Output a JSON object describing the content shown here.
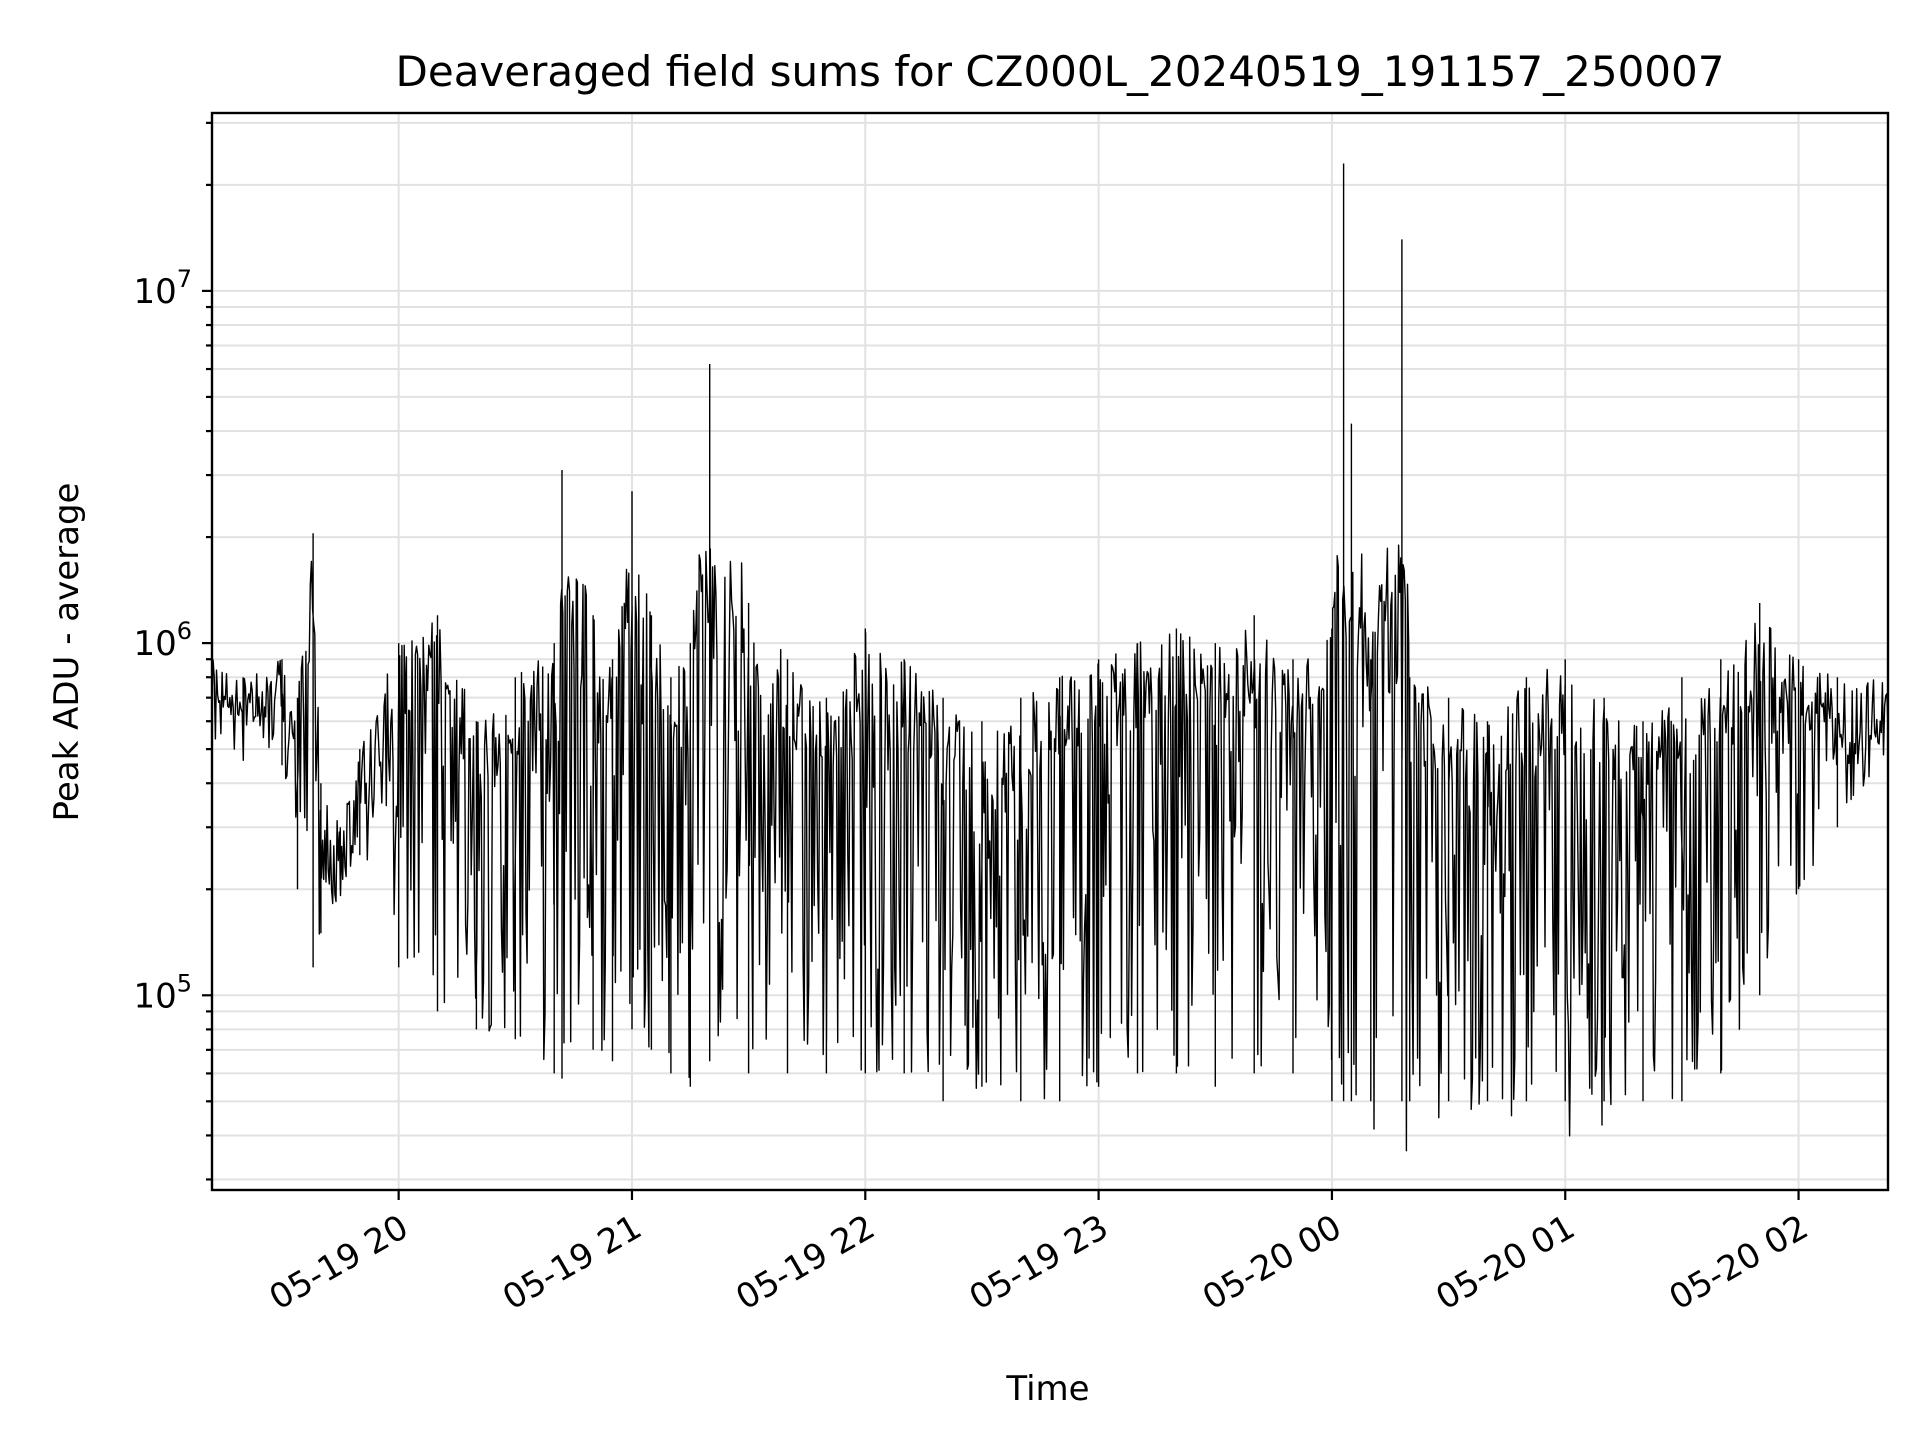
{
  "chart_data": {
    "type": "line",
    "title": "Deaveraged field sums for CZ000L_20240519_191157_250007",
    "xlabel": "Time",
    "ylabel": "Peak ADU - average",
    "yscale": "log",
    "ylim": [
      28000,
      32000000
    ],
    "xlim": [
      "2024-05-19 19:12",
      "2024-05-20 02:23"
    ],
    "grid": true,
    "x_ticks": [
      {
        "value": "2024-05-19 20:00",
        "label": "05-19 20"
      },
      {
        "value": "2024-05-19 21:00",
        "label": "05-19 21"
      },
      {
        "value": "2024-05-19 22:00",
        "label": "05-19 22"
      },
      {
        "value": "2024-05-19 23:00",
        "label": "05-19 23"
      },
      {
        "value": "2024-05-20 00:00",
        "label": "05-20 00"
      },
      {
        "value": "2024-05-20 01:00",
        "label": "05-20 01"
      },
      {
        "value": "2024-05-20 02:00",
        "label": "05-20 02"
      }
    ],
    "y_ticks": [
      {
        "value": 100000,
        "base": "10",
        "exp": "5"
      },
      {
        "value": 1000000,
        "base": "10",
        "exp": "6"
      },
      {
        "value": 10000000,
        "base": "10",
        "exp": "7"
      }
    ],
    "series": [
      {
        "color": "#000000",
        "x": [
          "2024-05-19 19:12",
          "2024-05-19 19:20",
          "2024-05-19 19:30",
          "2024-05-19 19:34",
          "2024-05-19 19:38",
          "2024-05-19 19:40",
          "2024-05-19 19:45",
          "2024-05-19 19:50",
          "2024-05-19 20:00",
          "2024-05-19 20:10",
          "2024-05-19 20:20",
          "2024-05-19 20:30",
          "2024-05-19 20:40",
          "2024-05-19 20:42",
          "2024-05-19 20:50",
          "2024-05-19 20:55",
          "2024-05-19 21:00",
          "2024-05-19 21:05",
          "2024-05-19 21:10",
          "2024-05-19 21:15",
          "2024-05-19 21:20",
          "2024-05-19 21:30",
          "2024-05-19 21:40",
          "2024-05-19 21:50",
          "2024-05-19 22:00",
          "2024-05-19 22:10",
          "2024-05-19 22:20",
          "2024-05-19 22:30",
          "2024-05-19 22:40",
          "2024-05-19 22:50",
          "2024-05-19 23:00",
          "2024-05-19 23:10",
          "2024-05-19 23:20",
          "2024-05-19 23:30",
          "2024-05-19 23:40",
          "2024-05-19 23:50",
          "2024-05-20 00:00",
          "2024-05-20 00:03",
          "2024-05-20 00:05",
          "2024-05-20 00:10",
          "2024-05-20 00:18",
          "2024-05-20 00:20",
          "2024-05-20 00:30",
          "2024-05-20 00:40",
          "2024-05-20 00:50",
          "2024-05-20 01:00",
          "2024-05-20 01:10",
          "2024-05-20 01:20",
          "2024-05-20 01:30",
          "2024-05-20 01:40",
          "2024-05-20 01:50",
          "2024-05-20 02:00",
          "2024-05-20 02:10",
          "2024-05-20 02:23"
        ],
        "y": [
          900000,
          800000,
          900000,
          700000,
          2050000,
          400000,
          300000,
          500000,
          1000000,
          1200000,
          600000,
          800000,
          1000000,
          3100000,
          1200000,
          900000,
          2700000,
          1200000,
          800000,
          1000000,
          6200000,
          1300000,
          900000,
          700000,
          1100000,
          900000,
          700000,
          600000,
          700000,
          800000,
          900000,
          1000000,
          1100000,
          1000000,
          1200000,
          900000,
          1100000,
          23000000,
          4200000,
          900000,
          14000000,
          800000,
          700000,
          600000,
          800000,
          900000,
          700000,
          600000,
          800000,
          900000,
          1300000,
          900000,
          800000,
          800000
        ],
        "y_min": [
          650000,
          600000,
          450000,
          200000,
          120000,
          150000,
          200000,
          250000,
          120000,
          90000,
          80000,
          75000,
          60000,
          58000,
          70000,
          65000,
          80000,
          70000,
          60000,
          55000,
          65000,
          60000,
          60000,
          60000,
          60000,
          60000,
          50000,
          55000,
          50000,
          50000,
          55000,
          60000,
          60000,
          55000,
          60000,
          60000,
          45000,
          50000,
          50000,
          40000,
          38000,
          33000,
          40000,
          45000,
          45000,
          40000,
          36000,
          45000,
          50000,
          60000,
          100000,
          200000,
          300000,
          500000
        ]
      }
    ]
  }
}
